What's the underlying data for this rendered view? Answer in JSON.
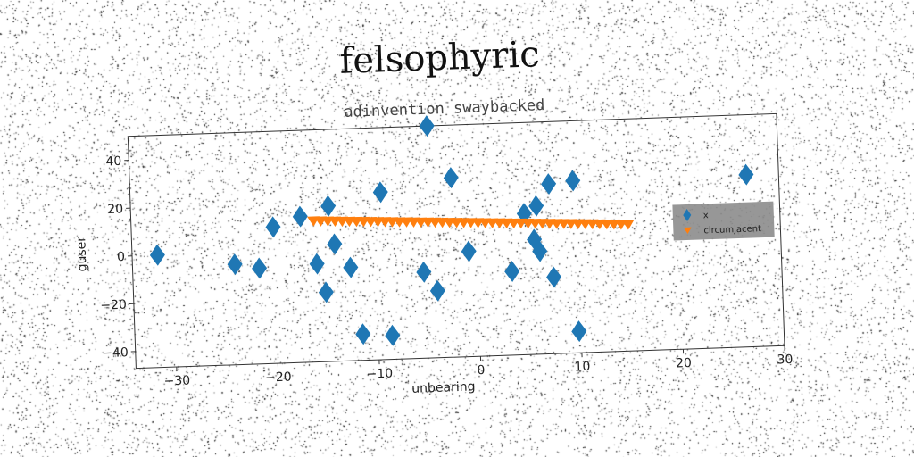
{
  "chart_data": {
    "type": "scatter",
    "title": "felsophyric",
    "subtitle": "adinvention swaybacked",
    "xlabel": "unbearing",
    "ylabel": "guser",
    "xlim": [
      -34,
      30
    ],
    "ylim": [
      -47,
      50
    ],
    "xticks": [
      -30,
      -20,
      -10,
      0,
      10,
      20,
      30
    ],
    "yticks": [
      -40,
      -20,
      0,
      20,
      40
    ],
    "grid": false,
    "legend_position": "center-right",
    "rotation_deg": -2,
    "series": [
      {
        "name": "x",
        "marker": "diamond",
        "color": "#1f77b4",
        "points": [
          [
            -31.5,
            0
          ],
          [
            -23.9,
            -5
          ],
          [
            -21.5,
            -7
          ],
          [
            -20,
            10
          ],
          [
            -17.3,
            14
          ],
          [
            -15.8,
            -6
          ],
          [
            -15,
            -18
          ],
          [
            -14.5,
            18
          ],
          [
            -14,
            2
          ],
          [
            -12.5,
            -8
          ],
          [
            -11.5,
            -36
          ],
          [
            -9.3,
            23
          ],
          [
            -8.6,
            -37
          ],
          [
            -5.3,
            -11
          ],
          [
            -4.5,
            50
          ],
          [
            -4,
            -19
          ],
          [
            -2.3,
            28
          ],
          [
            -0.8,
            -3
          ],
          [
            3.4,
            -12
          ],
          [
            4.8,
            12
          ],
          [
            5.7,
            1
          ],
          [
            6,
            15
          ],
          [
            6.2,
            -4
          ],
          [
            7.3,
            24
          ],
          [
            7.5,
            -15
          ],
          [
            9.7,
            25
          ],
          [
            9.8,
            -38
          ],
          [
            26.8,
            25
          ]
        ]
      },
      {
        "name": "circumjacent",
        "marker": "triangle-down",
        "color": "#ff7f0e",
        "x_start": -16,
        "x_end": 15,
        "count": 45,
        "y_start": 12,
        "y_end": 6
      }
    ]
  }
}
